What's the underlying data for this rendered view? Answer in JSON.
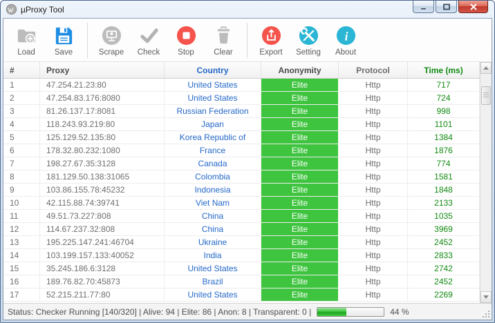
{
  "window": {
    "title": "µProxy Tool"
  },
  "toolbar": {
    "groups": [
      [
        {
          "label": "Load",
          "icon": "load-icon"
        },
        {
          "label": "Save",
          "icon": "save-icon"
        }
      ],
      [
        {
          "label": "Scrape",
          "icon": "scrape-icon"
        },
        {
          "label": "Check",
          "icon": "check-icon"
        },
        {
          "label": "Stop",
          "icon": "stop-icon"
        },
        {
          "label": "Clear",
          "icon": "clear-icon"
        }
      ],
      [
        {
          "label": "Export",
          "icon": "export-icon"
        },
        {
          "label": "Setting",
          "icon": "setting-icon"
        },
        {
          "label": "About",
          "icon": "about-icon"
        }
      ]
    ]
  },
  "table": {
    "columns": [
      "#",
      "Proxy",
      "Country",
      "Anonymity",
      "Protocol",
      "Time (ms)"
    ],
    "rows": [
      {
        "num": "1",
        "proxy": "47.254.21.23:80",
        "country": "United States",
        "anonymity": "Elite",
        "protocol": "Http",
        "time": "717"
      },
      {
        "num": "2",
        "proxy": "47.254.83.176:8080",
        "country": "United States",
        "anonymity": "Elite",
        "protocol": "Http",
        "time": "724"
      },
      {
        "num": "3",
        "proxy": "81.26.137.17:8081",
        "country": "Russian Federation",
        "anonymity": "Elite",
        "protocol": "Http",
        "time": "998"
      },
      {
        "num": "4",
        "proxy": "118.243.93.219:80",
        "country": "Japan",
        "anonymity": "Elite",
        "protocol": "Http",
        "time": "1101"
      },
      {
        "num": "5",
        "proxy": "125.129.52.135:80",
        "country": "Korea Republic of",
        "anonymity": "Elite",
        "protocol": "Http",
        "time": "1384"
      },
      {
        "num": "6",
        "proxy": "178.32.80.232:1080",
        "country": "France",
        "anonymity": "Elite",
        "protocol": "Http",
        "time": "1876"
      },
      {
        "num": "7",
        "proxy": "198.27.67.35:3128",
        "country": "Canada",
        "anonymity": "Elite",
        "protocol": "Http",
        "time": "774"
      },
      {
        "num": "8",
        "proxy": "181.129.50.138:31065",
        "country": "Colombia",
        "anonymity": "Elite",
        "protocol": "Http",
        "time": "1581"
      },
      {
        "num": "9",
        "proxy": "103.86.155.78:45232",
        "country": "Indonesia",
        "anonymity": "Elite",
        "protocol": "Http",
        "time": "1848"
      },
      {
        "num": "10",
        "proxy": "42.115.88.74:39741",
        "country": "Viet Nam",
        "anonymity": "Elite",
        "protocol": "Http",
        "time": "2133"
      },
      {
        "num": "11",
        "proxy": "49.51.73.227:808",
        "country": "China",
        "anonymity": "Elite",
        "protocol": "Http",
        "time": "1035"
      },
      {
        "num": "12",
        "proxy": "114.67.237.32:808",
        "country": "China",
        "anonymity": "Elite",
        "protocol": "Http",
        "time": "3969"
      },
      {
        "num": "13",
        "proxy": "195.225.147.241:46704",
        "country": "Ukraine",
        "anonymity": "Elite",
        "protocol": "Http",
        "time": "2452"
      },
      {
        "num": "14",
        "proxy": "103.199.157.133:40052",
        "country": "India",
        "anonymity": "Elite",
        "protocol": "Http",
        "time": "2833"
      },
      {
        "num": "15",
        "proxy": "35.245.186.6:3128",
        "country": "United States",
        "anonymity": "Elite",
        "protocol": "Http",
        "time": "2742"
      },
      {
        "num": "16",
        "proxy": "189.76.82.70:45873",
        "country": "Brazil",
        "anonymity": "Elite",
        "protocol": "Http",
        "time": "2452"
      },
      {
        "num": "17",
        "proxy": "52.215.211.77:80",
        "country": "United States",
        "anonymity": "Elite",
        "protocol": "Http",
        "time": "2269"
      }
    ]
  },
  "status": {
    "text": "Status: Checker Running [140/320] | Alive: 94 | Elite: 86 | Anon: 8 | Transparent: 0 |",
    "progress_percent": 44,
    "percent_label": "44 %"
  },
  "colors": {
    "elite_green": "#3ec43e",
    "country_blue": "#2468c8",
    "time_green": "#128a12",
    "accent_red": "#f5544c",
    "accent_teal": "#2ab6d4",
    "save_blue": "#1d8de4"
  }
}
